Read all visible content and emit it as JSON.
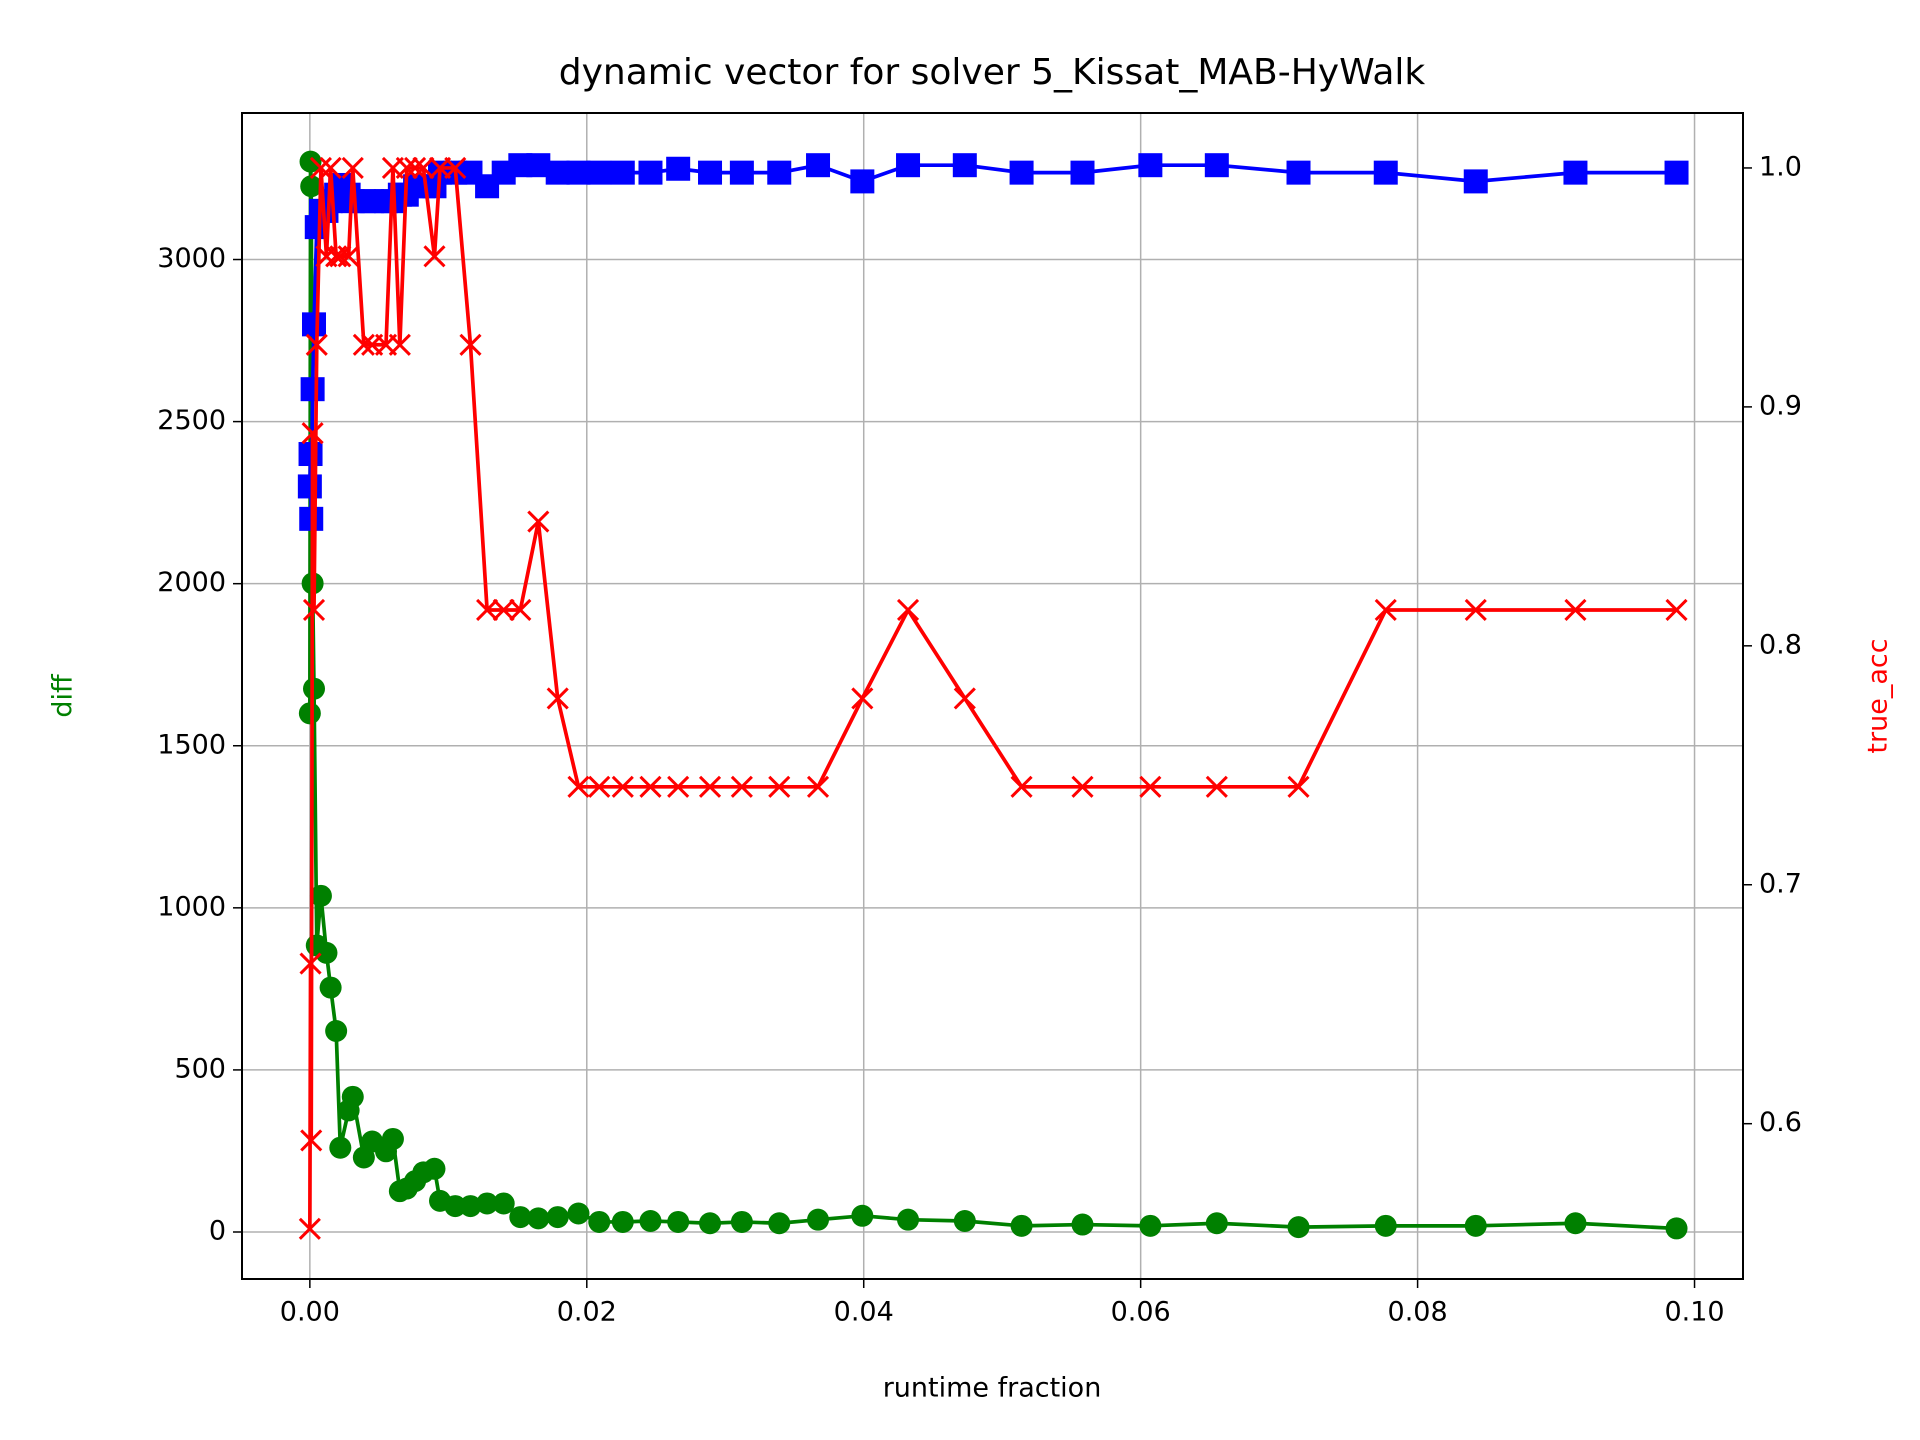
{
  "chart_data": {
    "type": "line",
    "title": "dynamic vector for solver 5_Kissat_MAB-HyWalk",
    "xlabel": "runtime fraction",
    "ylabel": "diff",
    "y2label": "true_acc",
    "ylabel_color": "#008000",
    "y2label_color": "#ff0000",
    "grid": true,
    "xlim": [
      -0.0049,
      0.1035
    ],
    "xticks": [
      {
        "value": 0,
        "label": "0.00"
      },
      {
        "value": 0.02,
        "label": "0.02"
      },
      {
        "value": 0.04,
        "label": "0.04"
      },
      {
        "value": 0.06,
        "label": "0.06"
      },
      {
        "value": 0.08,
        "label": "0.08"
      },
      {
        "value": 0.1,
        "label": "0.10"
      }
    ],
    "ylim": [
      -145,
      3452
    ],
    "yticks": [
      0,
      500,
      1000,
      1500,
      2000,
      2500,
      3000
    ],
    "y2lim": [
      0.535,
      1.023
    ],
    "y2ticks": [
      0.6,
      0.7,
      0.8,
      0.9,
      {
        "value": 1,
        "label": "1.0"
      }
    ],
    "x": [
      0,
      5e-05,
      0.0001,
      0.0002,
      0.0003,
      0.0005,
      0.0008,
      0.0012,
      0.0015,
      0.0019,
      0.0022,
      0.0028,
      0.0031,
      0.0039,
      0.0045,
      0.0055,
      0.006,
      0.0065,
      0.007,
      0.0076,
      0.0082,
      0.009,
      0.0094,
      0.0105,
      0.0116,
      0.0128,
      0.014,
      0.0152,
      0.0165,
      0.0179,
      0.0194,
      0.0209,
      0.0226,
      0.0246,
      0.0266,
      0.0289,
      0.0312,
      0.0339,
      0.0367,
      0.0399,
      0.0432,
      0.0473,
      0.0514,
      0.0558,
      0.0607,
      0.0655,
      0.0714,
      0.0777,
      0.0842,
      0.0914,
      0.0987
    ],
    "series": [
      {
        "color": "#008000",
        "marker": "circle",
        "axis": "y",
        "values": [
          1600,
          3302,
          3226,
          2001,
          1676,
          884,
          1037,
          861,
          754,
          620,
          260,
          375,
          417,
          230,
          279,
          249,
          287,
          126,
          134,
          157,
          184,
          195,
          96,
          80,
          80,
          88,
          88,
          46,
          42,
          46,
          57,
          31,
          31,
          34,
          31,
          27,
          31,
          27,
          38,
          50,
          38,
          34,
          19,
          23,
          19,
          27,
          15,
          19,
          19,
          27,
          11
        ]
      },
      {
        "color": "#0000ff",
        "marker": "square",
        "axis": "y",
        "values": [
          2300,
          2400,
          2200,
          2600,
          2800,
          3100,
          3150,
          3150,
          3180,
          3200,
          3230,
          3200,
          3180,
          3180,
          3180,
          3180,
          3180,
          3200,
          3200,
          3226,
          3226,
          3226,
          3268,
          3268,
          3268,
          3226,
          3268,
          3291,
          3291,
          3268,
          3268,
          3268,
          3268,
          3268,
          3280,
          3268,
          3268,
          3268,
          3291,
          3241,
          3291,
          3291,
          3268,
          3268,
          3291,
          3291,
          3268,
          3268,
          3241,
          3268,
          3268
        ]
      },
      {
        "color": "#ff0000",
        "marker": "cross",
        "axis": "y2",
        "values": [
          0.556,
          0.667,
          0.593,
          0.889,
          0.815,
          0.926,
          1.0,
          0.963,
          1.0,
          0.963,
          0.963,
          0.963,
          1.0,
          0.926,
          0.926,
          0.926,
          1.0,
          0.926,
          1.0,
          1.0,
          1.0,
          0.963,
          1.0,
          1.0,
          0.926,
          0.815,
          0.815,
          0.815,
          0.852,
          0.778,
          0.741,
          0.741,
          0.741,
          0.741,
          0.741,
          0.741,
          0.741,
          0.741,
          0.741,
          0.778,
          0.815,
          0.778,
          0.741,
          0.741,
          0.741,
          0.741,
          0.741,
          0.815,
          0.815,
          0.815,
          0.815
        ]
      }
    ]
  }
}
